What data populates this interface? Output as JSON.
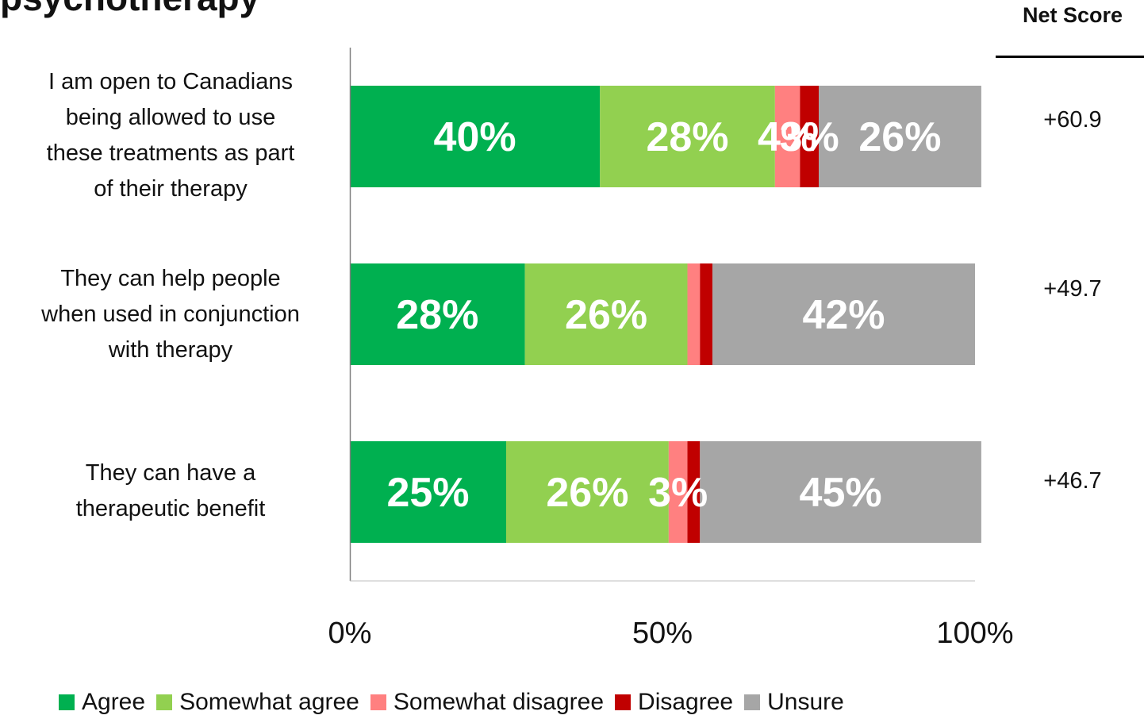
{
  "title": "psychotherapy",
  "net_score_header": "Net Score",
  "chart_data": {
    "type": "bar",
    "orientation": "horizontal",
    "stacked": true,
    "categories": [
      "I am open to Canadians\nbeing allowed to use\nthese treatments as part\nof their therapy",
      "They can help people\nwhen used in conjunction\nwith therapy",
      "They can have a\ntherapeutic benefit"
    ],
    "series": [
      {
        "name": "Agree",
        "color": "#00b050",
        "values": [
          40,
          28,
          25
        ],
        "labels": [
          "40%",
          "28%",
          "25%"
        ]
      },
      {
        "name": "Somewhat agree",
        "color": "#92d050",
        "values": [
          28,
          26,
          26
        ],
        "labels": [
          "28%",
          "26%",
          "26%"
        ]
      },
      {
        "name": "Somewhat disagree",
        "color": "#ff8080",
        "values": [
          4,
          2,
          3
        ],
        "labels": [
          "4%",
          "",
          "3%"
        ]
      },
      {
        "name": "Disagree",
        "color": "#c00000",
        "values": [
          3,
          2,
          2
        ],
        "labels": [
          "3%",
          "",
          ""
        ]
      },
      {
        "name": "Unsure",
        "color": "#a6a6a6",
        "values": [
          26,
          42,
          45
        ],
        "labels": [
          "26%",
          "42%",
          "45%"
        ]
      }
    ],
    "x_ticks": [
      "0%",
      "50%",
      "100%"
    ],
    "xlim": [
      0,
      100
    ],
    "grid": false,
    "legend_position": "bottom"
  },
  "net_scores": [
    "+60.9",
    "+49.7",
    "+46.7"
  ]
}
